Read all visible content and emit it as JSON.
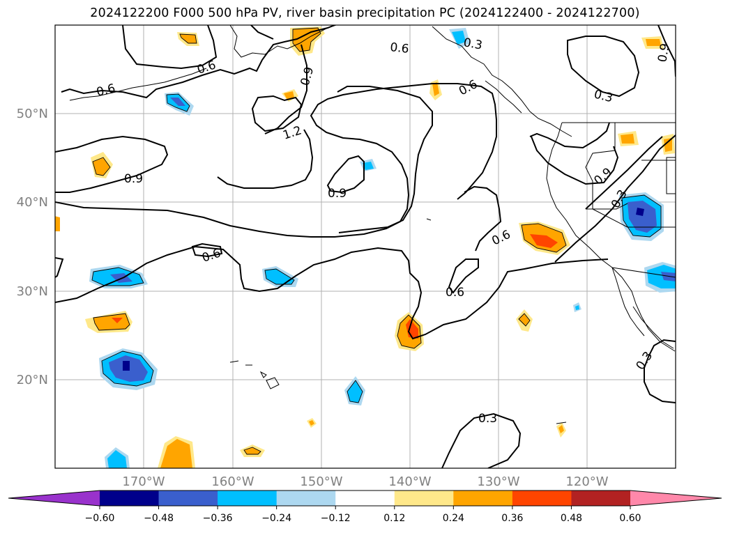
{
  "title": "2024122200 F000 500 hPa PV, river basin precipitation PC (2024122400 - 2024122700)",
  "map": {
    "lat_labels": [
      "50°N",
      "40°N",
      "30°N",
      "20°N"
    ],
    "lon_labels": [
      "170°W",
      "160°W",
      "150°W",
      "140°W",
      "130°W",
      "120°W"
    ],
    "pv_contour_labels": [
      "0.6",
      "0.6",
      "0.6",
      "0.9",
      "0.3",
      "0.6",
      "0.3",
      "0.9",
      "1.2",
      "0.9",
      "0.9",
      "0.9",
      "0.3",
      "0.6",
      "0.6",
      "0.6",
      "0.3",
      "0.3"
    ],
    "colors": {
      "pos_012": "#ffe88a",
      "pos_024": "#ffa500",
      "pos_036": "#ff4500",
      "neg_012": "#add8f0",
      "neg_024": "#00bfff",
      "neg_036": "#3a5fcd",
      "neg_048": "#00008b"
    }
  },
  "colorbar": {
    "tick_labels": [
      "−0.60",
      "−0.48",
      "−0.36",
      "−0.24",
      "−0.12",
      "0.12",
      "0.24",
      "0.36",
      "0.48",
      "0.60"
    ],
    "colors": [
      "#9932cc",
      "#00008b",
      "#3a5fcd",
      "#00bfff",
      "#add8f0",
      "#ffffff",
      "#ffe88a",
      "#ffa500",
      "#ff4500",
      "#b22222",
      "#ff88aa"
    ]
  }
}
